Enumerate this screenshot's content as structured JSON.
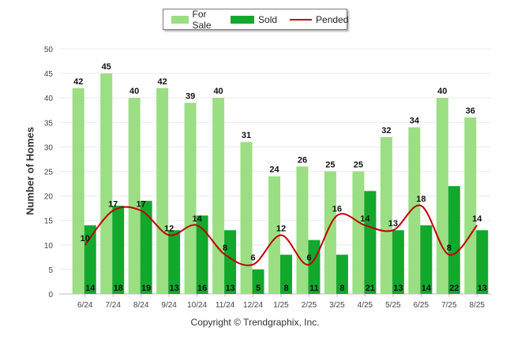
{
  "legend": {
    "for_sale": "For Sale",
    "sold": "Sold",
    "pended": "Pended"
  },
  "colors": {
    "for_sale": "#9bde84",
    "sold": "#12a82c",
    "pended": "#c00000"
  },
  "copyright": "Copyright © Trendgraphix, Inc.",
  "chart_data": {
    "type": "bar",
    "ylabel": "Number of Homes",
    "ylim": [
      0,
      50
    ],
    "yticks": [
      0,
      5,
      10,
      15,
      20,
      25,
      30,
      35,
      40,
      45,
      50
    ],
    "grid": true,
    "legend_position": "top-center",
    "categories": [
      "6/24",
      "7/24",
      "8/24",
      "9/24",
      "10/24",
      "11/24",
      "12/24",
      "1/25",
      "2/25",
      "3/25",
      "4/25",
      "5/25",
      "6/25",
      "7/25",
      "8/25"
    ],
    "series": [
      {
        "name": "For Sale",
        "type": "bar",
        "values": [
          42,
          45,
          40,
          42,
          39,
          40,
          31,
          24,
          26,
          25,
          25,
          32,
          34,
          40,
          36
        ]
      },
      {
        "name": "Sold",
        "type": "bar",
        "values": [
          14,
          18,
          19,
          13,
          16,
          13,
          5,
          8,
          11,
          8,
          21,
          13,
          14,
          22,
          13
        ]
      },
      {
        "name": "Pended",
        "type": "line",
        "values": [
          10,
          17,
          17,
          12,
          14,
          8,
          6,
          12,
          6,
          16,
          14,
          13,
          18,
          8,
          14
        ]
      }
    ]
  }
}
